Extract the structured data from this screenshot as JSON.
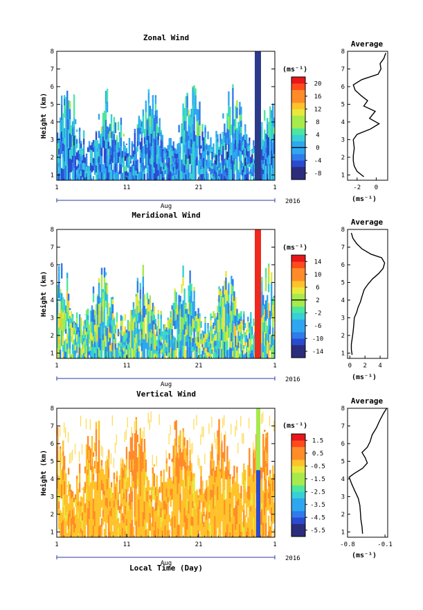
{
  "figure": {
    "year": "2016",
    "month_label": "Aug",
    "xlabel": "Local Time (Day)",
    "ylabel": "Height (km)",
    "unit": "(ms⁻¹)",
    "avg_xlabel": "(ms⁻¹)",
    "avg_title": "Average",
    "day_ticks": [
      "1",
      "11",
      "21",
      "1"
    ],
    "height_ticks": [
      "1",
      "2",
      "3",
      "4",
      "5",
      "6",
      "7",
      "8"
    ]
  },
  "chart_data": [
    {
      "type": "heatmap",
      "title": "Zonal Wind",
      "xlabel": "Local Time (Day)",
      "ylabel": "Height (km)",
      "ylim": [
        0.7,
        8
      ],
      "colorbar": {
        "unit": "(ms⁻¹)",
        "range": [
          -10,
          22
        ],
        "ticks": [
          "20",
          "16",
          "12",
          "8",
          "4",
          "0",
          "-4",
          "-8"
        ],
        "tick_values": [
          20,
          16,
          12,
          8,
          4,
          0,
          -4,
          -8
        ],
        "marked_level": 0
      },
      "dominant_colors": [
        "#3a57c8",
        "#2fa0e6",
        "#39d2c0",
        "#c8e640"
      ],
      "average": {
        "title": "Average",
        "xlabel": "(ms⁻¹)",
        "xlim": [
          -3,
          1.2
        ],
        "xticks": [
          "-2",
          "0"
        ],
        "xtick_values": [
          -2,
          0
        ],
        "height": [
          0.9,
          1.2,
          1.5,
          1.8,
          2.1,
          2.5,
          3.0,
          3.3,
          3.6,
          3.9,
          4.2,
          4.6,
          4.9,
          5.2,
          5.5,
          5.8,
          6.1,
          6.4,
          6.7,
          7.0,
          7.3,
          7.6,
          7.9
        ],
        "value": [
          -1.3,
          -2.0,
          -2.3,
          -2.4,
          -2.4,
          -2.3,
          -2.4,
          -2.0,
          -0.6,
          0.3,
          -0.7,
          -0.1,
          -1.3,
          -0.9,
          -1.6,
          -2.2,
          -2.4,
          -1.5,
          0.2,
          0.5,
          0.4,
          0.8,
          1.0
        ]
      }
    },
    {
      "type": "heatmap",
      "title": "Meridional Wind",
      "xlabel": "Local Time (Day)",
      "ylabel": "Height (km)",
      "ylim": [
        0.7,
        8
      ],
      "colorbar": {
        "unit": "(ms⁻¹)",
        "range": [
          -16,
          16
        ],
        "ticks": [
          "14",
          "10",
          "6",
          "2",
          "-2",
          "-6",
          "-10",
          "-14"
        ],
        "tick_values": [
          14,
          10,
          6,
          2,
          -2,
          -6,
          -10,
          -14
        ],
        "marked_level": 2
      },
      "dominant_colors": [
        "#2fa0e6",
        "#39d2c0",
        "#c8e640",
        "#3a57c8"
      ],
      "average": {
        "title": "Average",
        "xlabel": "(ms⁻¹)",
        "xlim": [
          -0.3,
          5
        ],
        "xticks": [
          "0",
          "2",
          "4"
        ],
        "xtick_values": [
          0,
          2,
          4
        ],
        "height": [
          0.9,
          1.2,
          1.5,
          1.8,
          2.1,
          2.5,
          3.0,
          3.3,
          3.6,
          3.9,
          4.2,
          4.6,
          4.9,
          5.2,
          5.5,
          5.8,
          6.1,
          6.4,
          6.6,
          6.9,
          7.2,
          7.5,
          7.8
        ],
        "value": [
          0.3,
          0.2,
          0.2,
          0.3,
          0.4,
          0.5,
          0.6,
          0.9,
          1.1,
          1.4,
          1.6,
          1.9,
          2.4,
          3.0,
          3.8,
          4.4,
          4.6,
          4.2,
          2.8,
          1.6,
          0.9,
          0.4,
          0.2
        ]
      }
    },
    {
      "type": "heatmap",
      "title": "Vertical Wind",
      "xlabel": "Local Time (Day)",
      "ylabel": "Height (km)",
      "ylim": [
        0.7,
        8
      ],
      "colorbar": {
        "unit": "(ms⁻¹)",
        "range": [
          -6,
          2
        ],
        "ticks": [
          "1.5",
          "0.5",
          "-0.5",
          "-1.5",
          "-2.5",
          "-3.5",
          "-4.5",
          "-5.5"
        ],
        "tick_values": [
          1.5,
          0.5,
          -0.5,
          -1.5,
          -2.5,
          -3.5,
          -4.5,
          -5.5
        ]
      },
      "dominant_colors": [
        "#ffc22a",
        "#ffe050",
        "#ff8c28",
        "#2a4bd0"
      ],
      "average": {
        "title": "Average",
        "xlabel": "(ms⁻¹)",
        "xlim": [
          -0.8,
          -0.05
        ],
        "xticks": [
          "-0.8",
          "-0.1"
        ],
        "xtick_values": [
          -0.8,
          -0.1
        ],
        "height": [
          0.9,
          1.3,
          1.7,
          2.1,
          2.5,
          2.9,
          3.3,
          3.7,
          4.1,
          4.3,
          4.6,
          4.9,
          5.2,
          5.5,
          5.8,
          6.1,
          6.5,
          6.9,
          7.3,
          7.7,
          8.0
        ],
        "value": [
          -0.52,
          -0.53,
          -0.55,
          -0.56,
          -0.57,
          -0.6,
          -0.66,
          -0.72,
          -0.77,
          -0.68,
          -0.52,
          -0.43,
          -0.47,
          -0.53,
          -0.43,
          -0.38,
          -0.34,
          -0.26,
          -0.2,
          -0.13,
          -0.07
        ]
      }
    }
  ]
}
